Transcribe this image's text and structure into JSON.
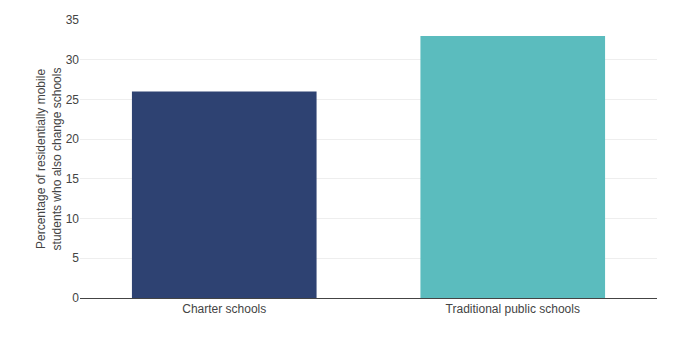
{
  "chart_data": {
    "type": "bar",
    "categories": [
      "Charter schools",
      "Traditional public schools"
    ],
    "values": [
      26,
      33
    ],
    "colors": [
      "#2E4272",
      "#5BBCBE"
    ],
    "ylabel": "Percentage of residentially mobile\nstudents who also change schools",
    "ylim": [
      0,
      35
    ],
    "yticks": [
      0,
      5,
      10,
      15,
      20,
      25,
      30,
      35
    ],
    "grid": true
  }
}
